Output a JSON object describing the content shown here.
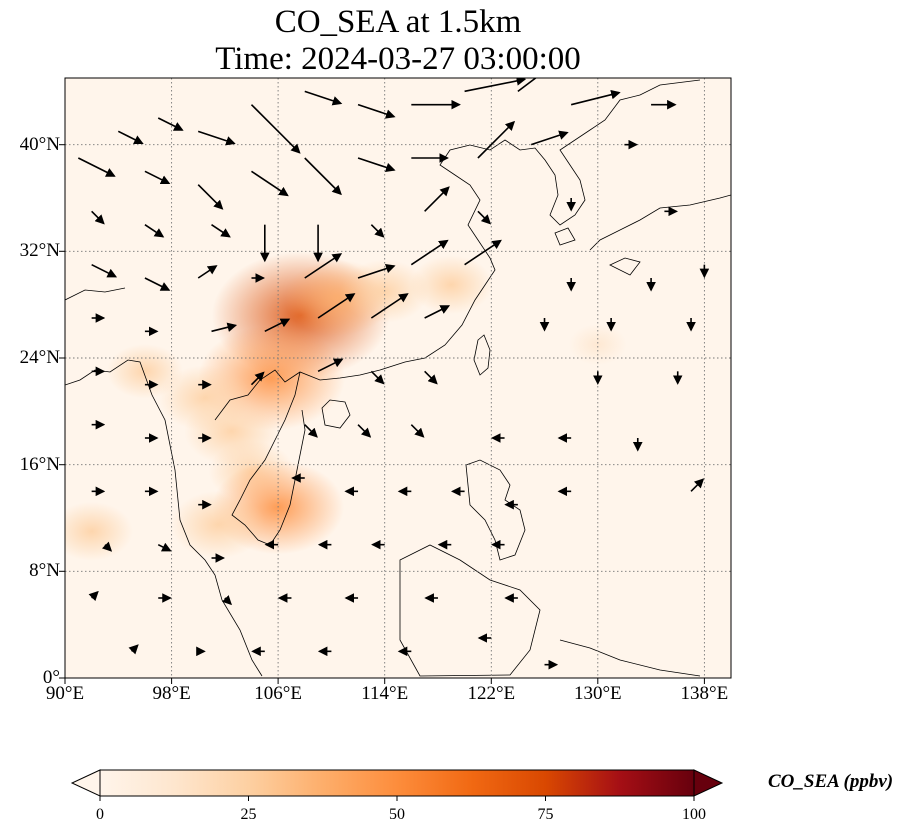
{
  "title": {
    "line1": "CO_SEA at 1.5km",
    "line2": "Time: 2024-03-27 03:00:00"
  },
  "map": {
    "lon_range": [
      90,
      140
    ],
    "lat_range": [
      0,
      45
    ],
    "lon_ticks": [
      {
        "value": 90,
        "label": "90°E"
      },
      {
        "value": 98,
        "label": "98°E"
      },
      {
        "value": 106,
        "label": "106°E"
      },
      {
        "value": 114,
        "label": "114°E"
      },
      {
        "value": 122,
        "label": "122°E"
      },
      {
        "value": 130,
        "label": "130°E"
      },
      {
        "value": 138,
        "label": "138°E"
      }
    ],
    "lat_ticks": [
      {
        "value": 0,
        "label": "0°"
      },
      {
        "value": 8,
        "label": "8°N"
      },
      {
        "value": 16,
        "label": "16°N"
      },
      {
        "value": 24,
        "label": "24°N"
      },
      {
        "value": 32,
        "label": "32°N"
      },
      {
        "value": 40,
        "label": "40°N"
      }
    ],
    "gridlines": true,
    "field_color_ramp": [
      "#fff5eb",
      "#fdd0a2",
      "#fd8d3c",
      "#d94801",
      "#7f2704"
    ],
    "co_hotspots_ppbv": [
      {
        "lon": 107.7,
        "lat": 27.2,
        "value": 45
      },
      {
        "lon": 110.5,
        "lat": 28.5,
        "value": 22
      },
      {
        "lon": 114.0,
        "lat": 29.0,
        "value": 16
      },
      {
        "lon": 119.0,
        "lat": 29.5,
        "value": 14
      },
      {
        "lon": 105.5,
        "lat": 22.5,
        "value": 35
      },
      {
        "lon": 102.5,
        "lat": 18.5,
        "value": 18
      },
      {
        "lon": 100.5,
        "lat": 21.0,
        "value": 17
      },
      {
        "lon": 104.0,
        "lat": 15.5,
        "value": 15
      },
      {
        "lon": 106.0,
        "lat": 12.8,
        "value": 30
      },
      {
        "lon": 101.5,
        "lat": 11.5,
        "value": 18
      },
      {
        "lon": 92.0,
        "lat": 11.0,
        "value": 14
      },
      {
        "lon": 96.0,
        "lat": 23.0,
        "value": 12
      },
      {
        "lon": 130.0,
        "lat": 25.0,
        "value": 6
      }
    ],
    "wind_vectors": [
      {
        "lon": 91,
        "lat": 39,
        "u": 3,
        "v": -1.5
      },
      {
        "lon": 94,
        "lat": 41,
        "u": 2,
        "v": -1
      },
      {
        "lon": 97,
        "lat": 42,
        "u": 2,
        "v": -1
      },
      {
        "lon": 100,
        "lat": 41,
        "u": 3,
        "v": -1
      },
      {
        "lon": 104,
        "lat": 43,
        "u": 4,
        "v": -4
      },
      {
        "lon": 108,
        "lat": 44,
        "u": 3,
        "v": -1
      },
      {
        "lon": 112,
        "lat": 43,
        "u": 3,
        "v": -1
      },
      {
        "lon": 116,
        "lat": 43,
        "u": 4,
        "v": 0
      },
      {
        "lon": 120,
        "lat": 44,
        "u": 5,
        "v": 1
      },
      {
        "lon": 124,
        "lat": 44,
        "u": 4,
        "v": 3
      },
      {
        "lon": 128,
        "lat": 43,
        "u": 4,
        "v": 1
      },
      {
        "lon": 134,
        "lat": 43,
        "u": 2,
        "v": 0
      },
      {
        "lon": 96,
        "lat": 38,
        "u": 2,
        "v": -1
      },
      {
        "lon": 100,
        "lat": 37,
        "u": 2,
        "v": -2
      },
      {
        "lon": 104,
        "lat": 38,
        "u": 3,
        "v": -2
      },
      {
        "lon": 108,
        "lat": 39,
        "u": 3,
        "v": -3
      },
      {
        "lon": 112,
        "lat": 39,
        "u": 3,
        "v": -1
      },
      {
        "lon": 116,
        "lat": 39,
        "u": 3,
        "v": 0
      },
      {
        "lon": 121,
        "lat": 39,
        "u": 3,
        "v": 3
      },
      {
        "lon": 125,
        "lat": 40,
        "u": 3,
        "v": 1
      },
      {
        "lon": 132,
        "lat": 40,
        "u": 1,
        "v": 0
      },
      {
        "lon": 92,
        "lat": 35,
        "u": 1,
        "v": -1
      },
      {
        "lon": 96,
        "lat": 34,
        "u": 1.5,
        "v": -1
      },
      {
        "lon": 101,
        "lat": 34,
        "u": 1.5,
        "v": -1
      },
      {
        "lon": 105,
        "lat": 34,
        "u": 0,
        "v": -3
      },
      {
        "lon": 109,
        "lat": 34,
        "u": 0,
        "v": -3
      },
      {
        "lon": 113,
        "lat": 34,
        "u": 1,
        "v": -1
      },
      {
        "lon": 117,
        "lat": 35,
        "u": 2,
        "v": 2
      },
      {
        "lon": 121,
        "lat": 35,
        "u": 1,
        "v": -1
      },
      {
        "lon": 128,
        "lat": 36,
        "u": 0,
        "v": -1
      },
      {
        "lon": 135,
        "lat": 35,
        "u": 1,
        "v": 0
      },
      {
        "lon": 92,
        "lat": 31,
        "u": 2,
        "v": -1
      },
      {
        "lon": 96,
        "lat": 30,
        "u": 2,
        "v": -1
      },
      {
        "lon": 100,
        "lat": 30,
        "u": 1.5,
        "v": 1
      },
      {
        "lon": 104,
        "lat": 30,
        "u": 1,
        "v": 0
      },
      {
        "lon": 108,
        "lat": 30,
        "u": 3,
        "v": 2
      },
      {
        "lon": 112,
        "lat": 30,
        "u": 3,
        "v": 1
      },
      {
        "lon": 116,
        "lat": 31,
        "u": 3,
        "v": 2
      },
      {
        "lon": 120,
        "lat": 31,
        "u": 3,
        "v": 2
      },
      {
        "lon": 128,
        "lat": 30,
        "u": 0,
        "v": -1
      },
      {
        "lon": 134,
        "lat": 30,
        "u": 0,
        "v": -1
      },
      {
        "lon": 138,
        "lat": 31,
        "u": 0,
        "v": -1
      },
      {
        "lon": 92,
        "lat": 27,
        "u": 1,
        "v": 0
      },
      {
        "lon": 96,
        "lat": 26,
        "u": 1,
        "v": 0
      },
      {
        "lon": 101,
        "lat": 26,
        "u": 2,
        "v": 0.5
      },
      {
        "lon": 105,
        "lat": 26,
        "u": 2,
        "v": 1
      },
      {
        "lon": 109,
        "lat": 27,
        "u": 3,
        "v": 2
      },
      {
        "lon": 113,
        "lat": 27,
        "u": 3,
        "v": 2
      },
      {
        "lon": 117,
        "lat": 27,
        "u": 2,
        "v": 1
      },
      {
        "lon": 126,
        "lat": 27,
        "u": 0,
        "v": -1
      },
      {
        "lon": 131,
        "lat": 27,
        "u": 0,
        "v": -1
      },
      {
        "lon": 137,
        "lat": 27,
        "u": 0,
        "v": -1
      },
      {
        "lon": 92,
        "lat": 23,
        "u": 1,
        "v": 0
      },
      {
        "lon": 96,
        "lat": 22,
        "u": 1,
        "v": 0
      },
      {
        "lon": 100,
        "lat": 22,
        "u": 1,
        "v": 0
      },
      {
        "lon": 104,
        "lat": 22,
        "u": 1,
        "v": 1
      },
      {
        "lon": 109,
        "lat": 23,
        "u": 2,
        "v": 1
      },
      {
        "lon": 113,
        "lat": 23,
        "u": 1,
        "v": -1
      },
      {
        "lon": 117,
        "lat": 23,
        "u": 1,
        "v": -1
      },
      {
        "lon": 130,
        "lat": 23,
        "u": 0,
        "v": -1
      },
      {
        "lon": 136,
        "lat": 23,
        "u": 0,
        "v": -1
      },
      {
        "lon": 92,
        "lat": 19,
        "u": 1,
        "v": 0
      },
      {
        "lon": 96,
        "lat": 18,
        "u": 1,
        "v": 0
      },
      {
        "lon": 100,
        "lat": 18,
        "u": 1,
        "v": 0
      },
      {
        "lon": 108,
        "lat": 19,
        "u": 1,
        "v": -1
      },
      {
        "lon": 112,
        "lat": 19,
        "u": 1,
        "v": -1
      },
      {
        "lon": 116,
        "lat": 19,
        "u": 1,
        "v": -1
      },
      {
        "lon": 123,
        "lat": 18,
        "u": -1,
        "v": 0
      },
      {
        "lon": 128,
        "lat": 18,
        "u": -1,
        "v": 0
      },
      {
        "lon": 133,
        "lat": 18,
        "u": 0,
        "v": -1
      },
      {
        "lon": 92,
        "lat": 14,
        "u": 1,
        "v": 0
      },
      {
        "lon": 96,
        "lat": 14,
        "u": 1,
        "v": 0
      },
      {
        "lon": 100,
        "lat": 13,
        "u": 1,
        "v": 0
      },
      {
        "lon": 108,
        "lat": 15,
        "u": -1,
        "v": 0
      },
      {
        "lon": 112,
        "lat": 14,
        "u": -1,
        "v": 0
      },
      {
        "lon": 116,
        "lat": 14,
        "u": -1,
        "v": 0
      },
      {
        "lon": 120,
        "lat": 14,
        "u": -1,
        "v": 0
      },
      {
        "lon": 124,
        "lat": 13,
        "u": -1,
        "v": 0
      },
      {
        "lon": 128,
        "lat": 14,
        "u": -1,
        "v": 0
      },
      {
        "lon": 137,
        "lat": 14,
        "u": 1,
        "v": 1
      },
      {
        "lon": 93,
        "lat": 10,
        "u": 0.5,
        "v": -0.5
      },
      {
        "lon": 97,
        "lat": 10,
        "u": 1,
        "v": -0.5
      },
      {
        "lon": 101,
        "lat": 9,
        "u": 1,
        "v": 0
      },
      {
        "lon": 106,
        "lat": 10,
        "u": -1,
        "v": 0
      },
      {
        "lon": 110,
        "lat": 10,
        "u": -1,
        "v": 0
      },
      {
        "lon": 114,
        "lat": 10,
        "u": -1,
        "v": 0
      },
      {
        "lon": 119,
        "lat": 10,
        "u": -1,
        "v": 0
      },
      {
        "lon": 123,
        "lat": 10,
        "u": -1,
        "v": 0
      },
      {
        "lon": 92,
        "lat": 6,
        "u": 0.5,
        "v": 0.5
      },
      {
        "lon": 97,
        "lat": 6,
        "u": 1,
        "v": 0
      },
      {
        "lon": 102,
        "lat": 6,
        "u": 0.5,
        "v": -0.5
      },
      {
        "lon": 107,
        "lat": 6,
        "u": -1,
        "v": 0
      },
      {
        "lon": 112,
        "lat": 6,
        "u": -1,
        "v": 0
      },
      {
        "lon": 118,
        "lat": 6,
        "u": -1,
        "v": 0
      },
      {
        "lon": 124,
        "lat": 6,
        "u": -1,
        "v": 0
      },
      {
        "lon": 95,
        "lat": 2,
        "u": 0.5,
        "v": 0.5
      },
      {
        "lon": 100,
        "lat": 2,
        "u": 0.5,
        "v": 0
      },
      {
        "lon": 105,
        "lat": 2,
        "u": -1,
        "v": 0
      },
      {
        "lon": 110,
        "lat": 2,
        "u": -1,
        "v": 0
      },
      {
        "lon": 116,
        "lat": 2,
        "u": -1,
        "v": 0
      },
      {
        "lon": 122,
        "lat": 3,
        "u": -1,
        "v": 0
      },
      {
        "lon": 126,
        "lat": 1,
        "u": 1,
        "v": 0
      }
    ]
  },
  "colorbar": {
    "label": "CO_SEA (ppbv)",
    "range": [
      0,
      100
    ],
    "extend": "both",
    "ticks": [
      {
        "value": 0,
        "label": "0"
      },
      {
        "value": 25,
        "label": "25"
      },
      {
        "value": 50,
        "label": "50"
      },
      {
        "value": 75,
        "label": "75"
      },
      {
        "value": 100,
        "label": "100"
      }
    ],
    "color_stops": [
      "#fff5eb",
      "#fee6ce",
      "#fdd0a2",
      "#fdae6b",
      "#fd8d3c",
      "#f16913",
      "#d94801",
      "#a50f15",
      "#67000d"
    ]
  }
}
